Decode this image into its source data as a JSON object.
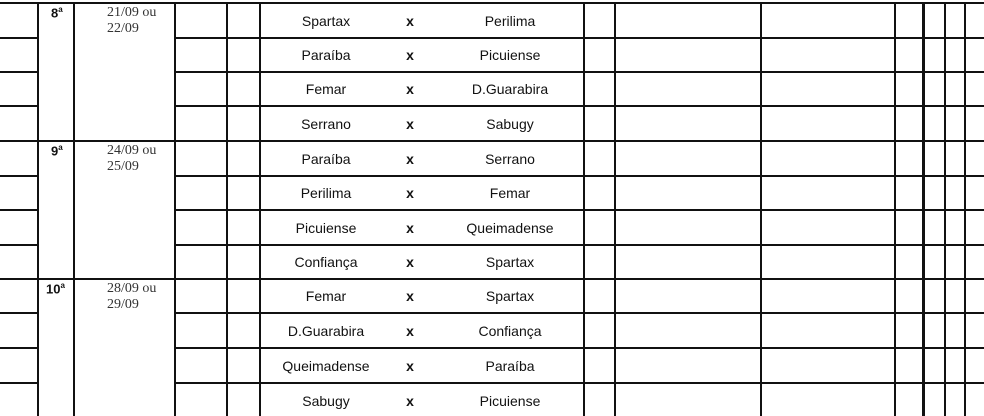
{
  "rounds": [
    {
      "number": "8",
      "suffix": "a",
      "date_line1": "21/09 ou",
      "date_line2": "22/09",
      "matches": [
        {
          "home": "Spartax",
          "vs": "x",
          "away": "Perilima"
        },
        {
          "home": "Paraíba",
          "vs": "x",
          "away": "Picuiense"
        },
        {
          "home": "Femar",
          "vs": "x",
          "away": "D.Guarabira"
        },
        {
          "home": "Serrano",
          "vs": "x",
          "away": "Sabugy"
        }
      ]
    },
    {
      "number": "9",
      "suffix": "a",
      "date_line1": "24/09 ou",
      "date_line2": "25/09",
      "matches": [
        {
          "home": "Paraíba",
          "vs": "x",
          "away": "Serrano"
        },
        {
          "home": "Perilima",
          "vs": "x",
          "away": "Femar"
        },
        {
          "home": "Picuiense",
          "vs": "x",
          "away": "Queimadense"
        },
        {
          "home": "Confiança",
          "vs": "x",
          "away": "Spartax"
        }
      ]
    },
    {
      "number": "10",
      "suffix": "a",
      "date_line1": "28/09 ou",
      "date_line2": "29/09",
      "matches": [
        {
          "home": "Femar",
          "vs": "x",
          "away": "Spartax"
        },
        {
          "home": "D.Guarabira",
          "vs": "x",
          "away": "Confiança"
        },
        {
          "home": "Queimadense",
          "vs": "x",
          "away": "Paraíba"
        },
        {
          "home": "Sabugy",
          "vs": "x",
          "away": "Picuiense"
        }
      ]
    }
  ]
}
